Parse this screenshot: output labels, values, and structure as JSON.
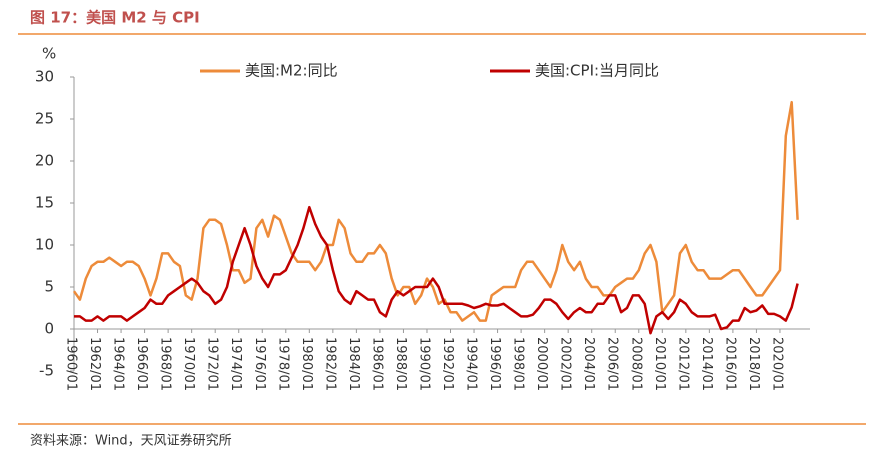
{
  "chart_data": {
    "type": "line",
    "title": "图 17：美国 M2 与 CPI",
    "source": "资料来源：Wind，天风证券研究所",
    "y_unit_label": "%",
    "categories": [
      "1960/01",
      null,
      null,
      null,
      "1962/01",
      null,
      null,
      null,
      "1964/01",
      null,
      null,
      null,
      "1966/01",
      null,
      null,
      null,
      "1968/01",
      null,
      null,
      null,
      "1970/01",
      null,
      null,
      null,
      "1972/01",
      null,
      null,
      null,
      "1974/01",
      null,
      null,
      null,
      "1976/01",
      null,
      null,
      null,
      "1978/01",
      null,
      null,
      null,
      "1980/01",
      null,
      null,
      null,
      "1982/01",
      null,
      null,
      null,
      "1984/01",
      null,
      null,
      null,
      "1986/01",
      null,
      null,
      null,
      "1988/01",
      null,
      null,
      null,
      "1990/01",
      null,
      null,
      null,
      "1992/01",
      null,
      null,
      null,
      "1994/01",
      null,
      null,
      null,
      "1996/01",
      null,
      null,
      null,
      "1998/01",
      null,
      null,
      null,
      "2000/01",
      null,
      null,
      null,
      "2002/01",
      null,
      null,
      null,
      "2004/01",
      null,
      null,
      null,
      "2006/01",
      null,
      null,
      null,
      "2008/01",
      null,
      null,
      null,
      "2010/01",
      null,
      null,
      null,
      "2012/01",
      null,
      null,
      null,
      "2014/01",
      null,
      null,
      null,
      "2016/01",
      null,
      null,
      null,
      "2018/01",
      null,
      null,
      null,
      "2020/01",
      null,
      null,
      null
    ],
    "series": [
      {
        "name": "美国:M2:同比",
        "color": "#ED8B3A",
        "values": [
          4.5,
          3.5,
          6,
          7.5,
          8,
          8,
          8.5,
          8,
          7.5,
          8,
          8,
          7.5,
          6,
          4,
          6,
          9,
          9,
          8,
          7.5,
          4,
          3.5,
          6,
          12,
          13,
          13,
          12.5,
          10,
          7,
          7,
          5.5,
          6,
          12,
          13,
          11,
          13.5,
          13,
          11,
          9,
          8,
          8,
          8,
          7,
          8,
          10,
          10,
          13,
          12,
          9,
          8,
          8,
          9,
          9,
          10,
          9,
          6,
          4,
          5,
          5,
          3,
          4,
          6,
          5,
          3,
          3.5,
          2,
          2,
          1,
          1.5,
          2,
          1,
          1,
          4,
          4.5,
          5,
          5,
          5,
          7,
          8,
          8,
          7,
          6,
          5,
          7,
          10,
          8,
          7,
          8,
          6,
          5,
          5,
          4,
          4,
          5,
          5.5,
          6,
          6,
          7,
          9,
          10,
          8,
          2,
          3,
          4,
          9,
          10,
          8,
          7,
          7,
          6,
          6,
          6,
          6.5,
          7,
          7,
          6,
          5,
          4,
          4,
          5,
          6,
          7,
          23,
          27,
          13
        ]
      },
      {
        "name": "美国:CPI:当月同比",
        "color": "#C00000",
        "values": [
          1.5,
          1.5,
          1,
          1,
          1.5,
          1,
          1.5,
          1.5,
          1.5,
          1,
          1.5,
          2,
          2.5,
          3.5,
          3,
          3,
          4,
          4.5,
          5,
          5.5,
          6,
          5.5,
          4.5,
          4,
          3,
          3.5,
          5,
          8,
          10,
          12,
          10,
          7.5,
          6,
          5,
          6.5,
          6.5,
          7,
          8.5,
          10,
          12,
          14.5,
          12.5,
          11,
          10,
          7,
          4.5,
          3.5,
          3,
          4.5,
          4,
          3.5,
          3.5,
          2,
          1.5,
          3.5,
          4.5,
          4,
          4.5,
          5,
          5,
          5,
          6,
          5,
          3,
          3,
          3,
          3,
          2.8,
          2.5,
          2.7,
          3,
          2.8,
          2.8,
          3,
          2.5,
          2,
          1.5,
          1.5,
          1.7,
          2.5,
          3.5,
          3.5,
          3,
          2,
          1.2,
          2,
          2.5,
          2,
          2,
          3,
          3,
          4,
          4,
          2,
          2.5,
          4,
          4,
          3,
          -0.5,
          1.5,
          2,
          1.2,
          2,
          3.5,
          3,
          2,
          1.5,
          1.5,
          1.5,
          1.7,
          0,
          0.2,
          1,
          1,
          2.5,
          2,
          2.2,
          2.8,
          1.8,
          1.8,
          1.5,
          1,
          2.6,
          5.4
        ]
      }
    ],
    "ylim": [
      -5,
      30
    ],
    "yticks": [
      -5,
      0,
      5,
      10,
      15,
      20,
      25,
      30
    ],
    "grid": false
  }
}
